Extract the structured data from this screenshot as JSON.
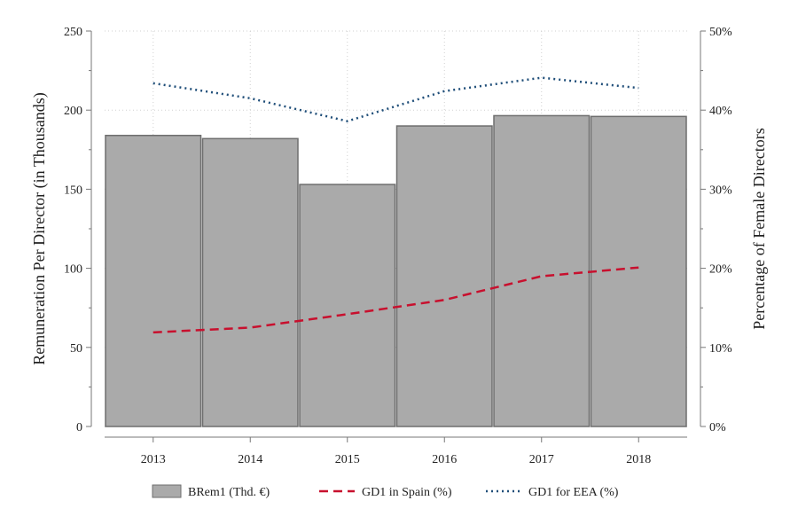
{
  "chart_data": {
    "type": "bar",
    "categories": [
      "2013",
      "2014",
      "2015",
      "2016",
      "2017",
      "2018"
    ],
    "ylabel": "Remuneration Per Director (in Thousands)",
    "y2label": "Percentage of Female Directors",
    "ylim": [
      0,
      250
    ],
    "y2lim": [
      0,
      50
    ],
    "yticks": [
      "0",
      "50",
      "100",
      "150",
      "200",
      "250"
    ],
    "y2ticks": [
      "0%",
      "10%",
      "20%",
      "30%",
      "40%",
      "50%"
    ],
    "grid": "vertical dotted",
    "legend_position": "bottom",
    "series": [
      {
        "name": "BRem1 (Thd. €)",
        "axis": "left",
        "style": "bar",
        "color": "#aaaaaa",
        "values": [
          184,
          182,
          153,
          190,
          196.5,
          196
        ]
      },
      {
        "name": "GD1 in Spain (%)",
        "axis": "right",
        "style": "dashed-line",
        "color": "#c8102e",
        "values": [
          11.9,
          12.5,
          14.2,
          16.0,
          19.0,
          20.1
        ]
      },
      {
        "name": "GD1 for EEA (%)",
        "axis": "right",
        "style": "dotted-line",
        "color": "#1f4e79",
        "values": [
          43.4,
          41.5,
          38.6,
          42.4,
          44.1,
          42.8
        ]
      }
    ]
  }
}
